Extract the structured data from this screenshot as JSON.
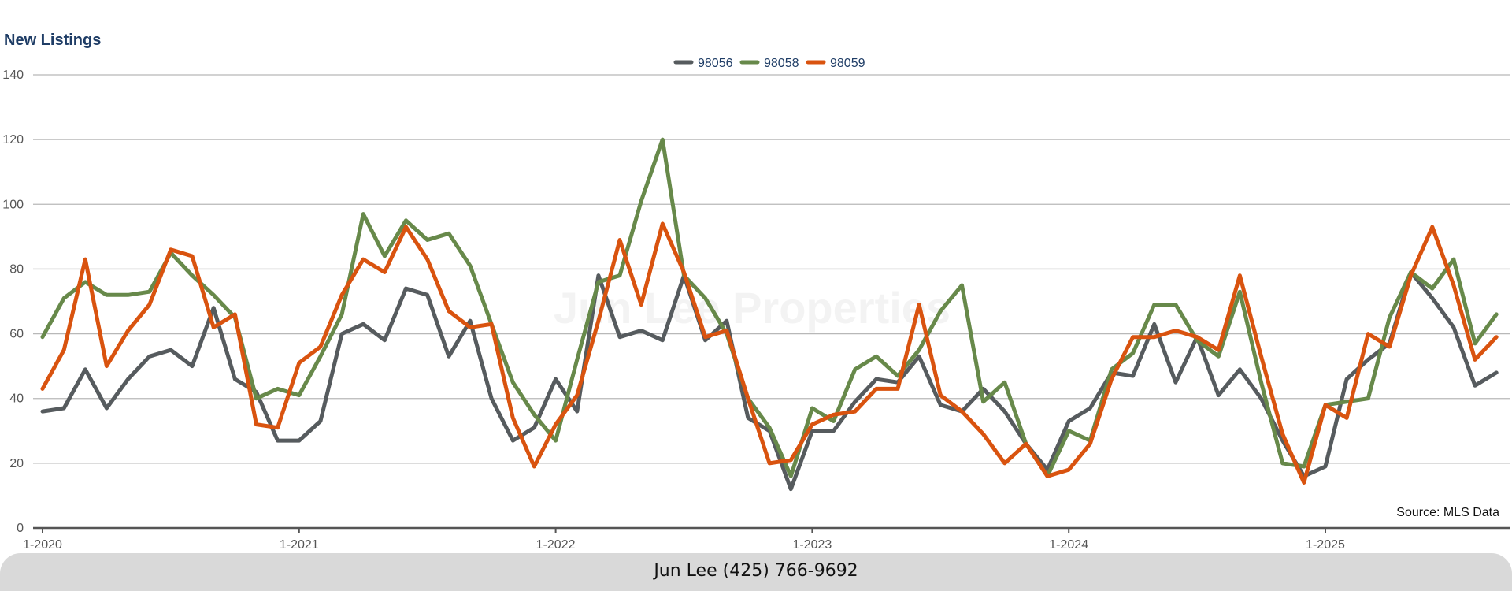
{
  "chart_data": {
    "type": "line",
    "title": "New Listings",
    "watermark": "Jun Lee Properties",
    "source_note": "Source: MLS Data",
    "footer": "Jun Lee (425) 766-9692",
    "xlabel": "",
    "ylabel": "",
    "ylim": [
      0,
      140
    ],
    "y_ticks": [
      0,
      20,
      40,
      60,
      80,
      100,
      120,
      140
    ],
    "x_tick_labels": [
      "1-2020",
      "1-2021",
      "1-2022",
      "1-2023",
      "1-2024",
      "1-2025"
    ],
    "x_months": [
      "1-2020",
      "2-2020",
      "3-2020",
      "4-2020",
      "5-2020",
      "6-2020",
      "7-2020",
      "8-2020",
      "9-2020",
      "10-2020",
      "11-2020",
      "12-2020",
      "1-2021",
      "2-2021",
      "3-2021",
      "4-2021",
      "5-2021",
      "6-2021",
      "7-2021",
      "8-2021",
      "9-2021",
      "10-2021",
      "11-2021",
      "12-2021",
      "1-2022",
      "2-2022",
      "3-2022",
      "4-2022",
      "5-2022",
      "6-2022",
      "7-2022",
      "8-2022",
      "9-2022",
      "10-2022",
      "11-2022",
      "12-2022",
      "1-2023",
      "2-2023",
      "3-2023",
      "4-2023",
      "5-2023",
      "6-2023",
      "7-2023",
      "8-2023",
      "9-2023",
      "10-2023",
      "11-2023",
      "12-2023",
      "1-2024",
      "2-2024",
      "3-2024",
      "4-2024",
      "5-2024",
      "6-2024",
      "7-2024",
      "8-2024",
      "9-2024",
      "10-2024",
      "11-2024",
      "12-2024",
      "1-2025",
      "2-2025",
      "3-2025",
      "4-2025",
      "5-2025",
      "6-2025",
      "7-2025",
      "8-2025",
      "9-2025"
    ],
    "grid": true,
    "legend_position": "top-center",
    "series": [
      {
        "name": "98056",
        "color": "#565b5e",
        "values": [
          36,
          37,
          49,
          37,
          46,
          53,
          55,
          50,
          68,
          46,
          42,
          27,
          27,
          33,
          60,
          63,
          58,
          74,
          72,
          53,
          64,
          40,
          27,
          31,
          46,
          36,
          78,
          59,
          61,
          58,
          78,
          58,
          64,
          34,
          30,
          12,
          30,
          30,
          39,
          46,
          45,
          53,
          38,
          36,
          43,
          36,
          26,
          18,
          33,
          37,
          48,
          47,
          63,
          45,
          59,
          41,
          49,
          40,
          27,
          16,
          19,
          46,
          52,
          57,
          79,
          71,
          62,
          44,
          48
        ]
      },
      {
        "name": "98058",
        "color": "#67894a",
        "values": [
          59,
          71,
          76,
          72,
          72,
          73,
          85,
          78,
          72,
          65,
          40,
          43,
          41,
          53,
          66,
          97,
          84,
          95,
          89,
          91,
          81,
          63,
          45,
          35,
          27,
          52,
          76,
          78,
          101,
          120,
          78,
          71,
          60,
          40,
          31,
          16,
          37,
          33,
          49,
          53,
          47,
          55,
          67,
          75,
          39,
          45,
          26,
          16,
          30,
          27,
          49,
          54,
          69,
          69,
          58,
          53,
          73,
          45,
          20,
          19,
          38,
          39,
          40,
          65,
          79,
          74,
          83,
          57,
          66
        ]
      },
      {
        "name": "98059",
        "color": "#d9530f",
        "values": [
          43,
          55,
          83,
          50,
          61,
          69,
          86,
          84,
          62,
          66,
          32,
          31,
          51,
          56,
          72,
          83,
          79,
          93,
          83,
          67,
          62,
          63,
          34,
          19,
          32,
          41,
          64,
          89,
          69,
          94,
          79,
          59,
          61,
          40,
          20,
          21,
          32,
          35,
          36,
          43,
          43,
          69,
          41,
          36,
          29,
          20,
          26,
          16,
          18,
          26,
          46,
          59,
          59,
          61,
          59,
          55,
          78,
          53,
          29,
          14,
          38,
          34,
          60,
          56,
          78,
          93,
          75,
          52,
          59
        ]
      }
    ]
  }
}
